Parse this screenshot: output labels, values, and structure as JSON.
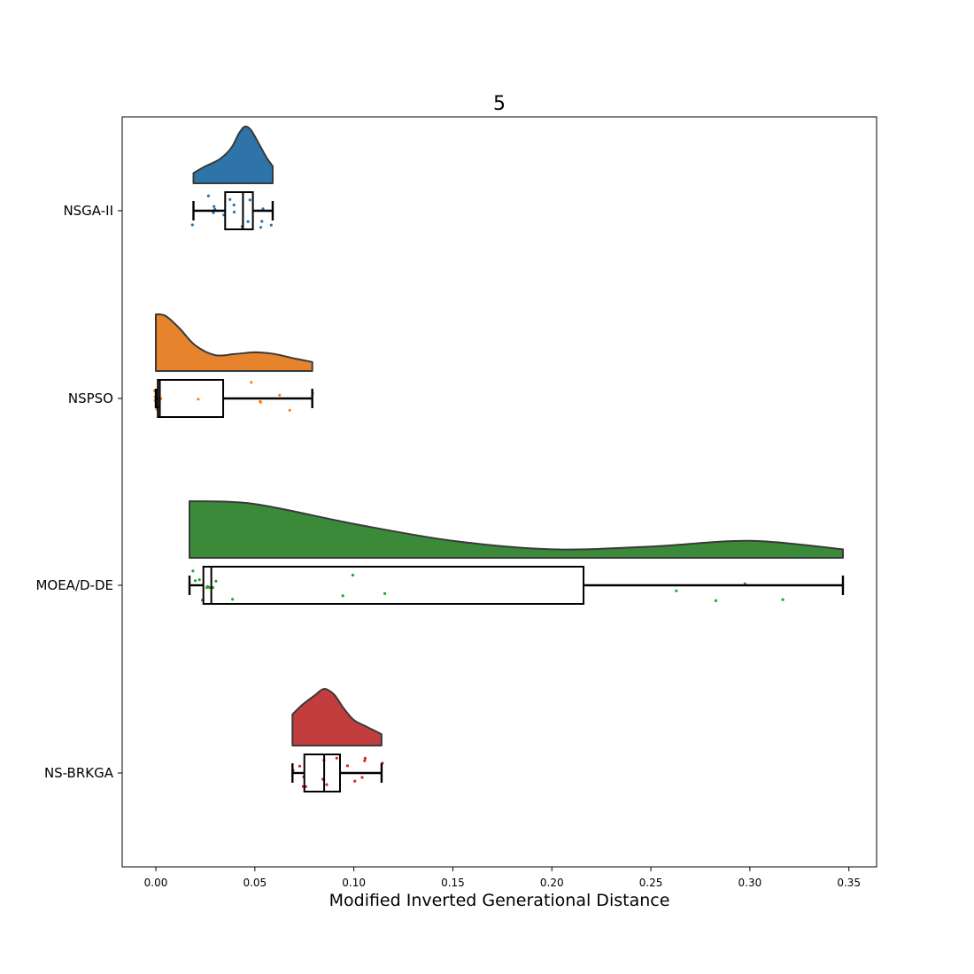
{
  "chart_data": {
    "type": "raincloud",
    "title": "5",
    "xlabel": "Modified Inverted Generational Distance",
    "ylabel": "",
    "xlim": [
      -0.017,
      0.364
    ],
    "xticks": [
      0.0,
      0.05,
      0.1,
      0.15,
      0.2,
      0.25,
      0.3,
      0.35
    ],
    "xtick_labels": [
      "0.00",
      "0.05",
      "0.10",
      "0.15",
      "0.20",
      "0.25",
      "0.30",
      "0.35"
    ],
    "grid": false,
    "categories": [
      "NSGA-II",
      "NSPSO",
      "MOEA/D-DE",
      "NS-BRKGA"
    ],
    "series": [
      {
        "name": "NSGA-II",
        "color": "#2e74a8",
        "dot_color": "#1f77b4",
        "box": {
          "whisker_low": 0.019,
          "q1": 0.035,
          "median": 0.044,
          "q3": 0.049,
          "whisker_high": 0.059
        },
        "density": [
          [
            0.019,
            0.18
          ],
          [
            0.025,
            0.3
          ],
          [
            0.032,
            0.42
          ],
          [
            0.038,
            0.62
          ],
          [
            0.042,
            0.88
          ],
          [
            0.045,
            1.0
          ],
          [
            0.048,
            0.94
          ],
          [
            0.052,
            0.7
          ],
          [
            0.056,
            0.45
          ],
          [
            0.059,
            0.3
          ]
        ],
        "points": [
          0.019,
          0.026,
          0.029,
          0.029,
          0.03,
          0.034,
          0.038,
          0.039,
          0.039,
          0.044,
          0.046,
          0.048,
          0.053,
          0.053,
          0.054,
          0.058
        ]
      },
      {
        "name": "NSPSO",
        "color": "#e5842c",
        "dot_color": "#ff7f0e",
        "box": {
          "whisker_low": 0.0,
          "q1": 0.001,
          "median": 0.002,
          "q3": 0.034,
          "whisker_high": 0.079
        },
        "density": [
          [
            0.0,
            1.0
          ],
          [
            0.005,
            0.97
          ],
          [
            0.012,
            0.75
          ],
          [
            0.02,
            0.45
          ],
          [
            0.03,
            0.28
          ],
          [
            0.04,
            0.3
          ],
          [
            0.05,
            0.33
          ],
          [
            0.06,
            0.3
          ],
          [
            0.07,
            0.22
          ],
          [
            0.079,
            0.16
          ]
        ],
        "points": [
          0.0,
          0.0,
          0.0,
          0.0,
          0.001,
          0.001,
          0.002,
          0.002,
          0.022,
          0.048,
          0.053,
          0.053,
          0.063,
          0.068,
          0.079
        ]
      },
      {
        "name": "MOEA/D-DE",
        "color": "#3a8a3a",
        "dot_color": "#2ca02c",
        "box": {
          "whisker_low": 0.017,
          "q1": 0.024,
          "median": 0.028,
          "q3": 0.216,
          "whisker_high": 0.347
        },
        "density": [
          [
            0.017,
            1.0
          ],
          [
            0.05,
            0.95
          ],
          [
            0.1,
            0.6
          ],
          [
            0.15,
            0.3
          ],
          [
            0.2,
            0.15
          ],
          [
            0.25,
            0.2
          ],
          [
            0.3,
            0.3
          ],
          [
            0.347,
            0.15
          ]
        ],
        "points": [
          0.019,
          0.02,
          0.022,
          0.024,
          0.026,
          0.026,
          0.027,
          0.028,
          0.029,
          0.03,
          0.039,
          0.094,
          0.099,
          0.115,
          0.263,
          0.283,
          0.298,
          0.317
        ]
      },
      {
        "name": "NS-BRKGA",
        "color": "#c23d3d",
        "dot_color": "#d62728",
        "box": {
          "whisker_low": 0.069,
          "q1": 0.075,
          "median": 0.085,
          "q3": 0.093,
          "whisker_high": 0.114
        },
        "density": [
          [
            0.069,
            0.55
          ],
          [
            0.074,
            0.72
          ],
          [
            0.08,
            0.88
          ],
          [
            0.085,
            1.0
          ],
          [
            0.09,
            0.9
          ],
          [
            0.095,
            0.65
          ],
          [
            0.1,
            0.45
          ],
          [
            0.106,
            0.34
          ],
          [
            0.114,
            0.2
          ]
        ],
        "points": [
          0.069,
          0.072,
          0.074,
          0.075,
          0.076,
          0.084,
          0.085,
          0.086,
          0.092,
          0.097,
          0.1,
          0.104,
          0.105,
          0.106,
          0.114
        ]
      }
    ]
  }
}
